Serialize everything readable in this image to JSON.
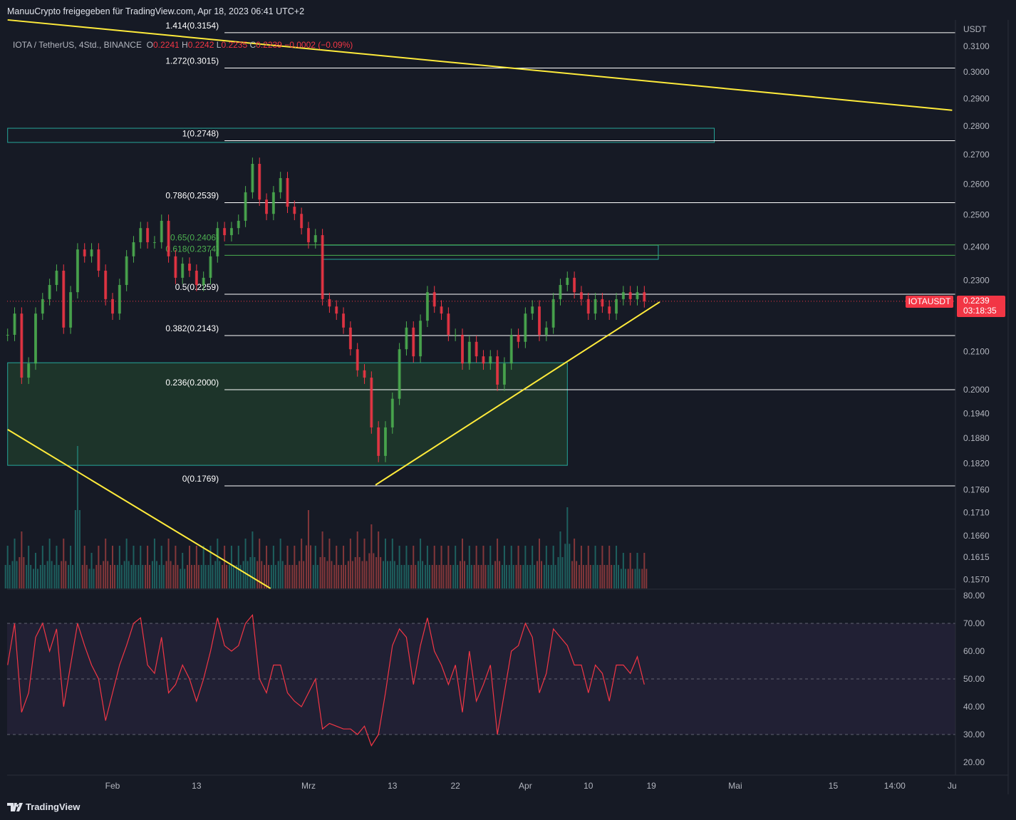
{
  "header": {
    "shared_by": "ManuuCrypto freigegeben für TradingView.com, Apr 18, 2023 06:41 UTC+2"
  },
  "legend": {
    "symbol": "IOTA / TetherUS, 4Std., BINANCE",
    "o_label": "O",
    "o": "0.2241",
    "h_label": "H",
    "h": "0.2242",
    "l_label": "L",
    "l": "0.2235",
    "c_label": "C",
    "c": "0.2239",
    "change": "−0.0002 (−0.09%)"
  },
  "price_label": {
    "symbol": "IOTAUSDT",
    "price": "0.2239",
    "countdown": "03:18:35",
    "color": "#f23645"
  },
  "footer": {
    "brand": "TradingView"
  },
  "chart_data": [
    {
      "type": "candlestick",
      "title": "",
      "ylabel": "USDT",
      "scale": "log",
      "ylim": [
        0.1545,
        0.3215
      ],
      "grid": false,
      "colors": {
        "up": "#4caf50",
        "down": "#f23645",
        "background": "#161a25"
      },
      "y_ticks": [
        "0.3100",
        "0.3000",
        "0.2900",
        "0.2800",
        "0.2700",
        "0.2600",
        "0.2500",
        "0.2400",
        "0.2300",
        "0.2100",
        "0.2000",
        "0.1940",
        "0.1880",
        "0.1820",
        "0.1760",
        "0.1710",
        "0.1660",
        "0.1615",
        "0.1570"
      ],
      "x_ticks": [
        {
          "label": "Feb",
          "date": "2023-02-01"
        },
        {
          "label": "13",
          "date": "2023-02-13"
        },
        {
          "label": "Mrz",
          "date": "2023-03-01"
        },
        {
          "label": "13",
          "date": "2023-03-13"
        },
        {
          "label": "22",
          "date": "2023-03-22"
        },
        {
          "label": "Apr",
          "date": "2023-04-01"
        },
        {
          "label": "10",
          "date": "2023-04-10"
        },
        {
          "label": "19",
          "date": "2023-04-19"
        },
        {
          "label": "Mai",
          "date": "2023-05-01"
        },
        {
          "label": "15",
          "date": "2023-05-15"
        },
        {
          "label": "14:00",
          "date": "2023-05-23T19:00"
        },
        {
          "label": "Ju",
          "date": "2023-06-01"
        }
      ],
      "dates": [
        "2023-01-17",
        "2023-01-18",
        "2023-01-19",
        "2023-01-20",
        "2023-01-21",
        "2023-01-22",
        "2023-01-23",
        "2023-01-24",
        "2023-01-25",
        "2023-01-26",
        "2023-01-27",
        "2023-01-28",
        "2023-01-29",
        "2023-01-30",
        "2023-01-31",
        "2023-02-01",
        "2023-02-02",
        "2023-02-03",
        "2023-02-04",
        "2023-02-05",
        "2023-02-06",
        "2023-02-07",
        "2023-02-08",
        "2023-02-09",
        "2023-02-10",
        "2023-02-11",
        "2023-02-12",
        "2023-02-13",
        "2023-02-14",
        "2023-02-15",
        "2023-02-16",
        "2023-02-17",
        "2023-02-18",
        "2023-02-19",
        "2023-02-20",
        "2023-02-21",
        "2023-02-22",
        "2023-02-23",
        "2023-02-24",
        "2023-02-25",
        "2023-02-26",
        "2023-02-27",
        "2023-02-28",
        "2023-03-01",
        "2023-03-02",
        "2023-03-03",
        "2023-03-04",
        "2023-03-05",
        "2023-03-06",
        "2023-03-07",
        "2023-03-08",
        "2023-03-09",
        "2023-03-10",
        "2023-03-11",
        "2023-03-12",
        "2023-03-13",
        "2023-03-14",
        "2023-03-15",
        "2023-03-16",
        "2023-03-17",
        "2023-03-18",
        "2023-03-19",
        "2023-03-20",
        "2023-03-21",
        "2023-03-22",
        "2023-03-23",
        "2023-03-24",
        "2023-03-25",
        "2023-03-26",
        "2023-03-27",
        "2023-03-28",
        "2023-03-29",
        "2023-03-30",
        "2023-03-31",
        "2023-04-01",
        "2023-04-02",
        "2023-04-03",
        "2023-04-04",
        "2023-04-05",
        "2023-04-06",
        "2023-04-07",
        "2023-04-08",
        "2023-04-09",
        "2023-04-10",
        "2023-04-11",
        "2023-04-12",
        "2023-04-13",
        "2023-04-14",
        "2023-04-15",
        "2023-04-16",
        "2023-04-17",
        "2023-04-18"
      ],
      "close": [
        0.2145,
        0.2204,
        0.2031,
        0.2068,
        0.2204,
        0.2245,
        0.2286,
        0.2328,
        0.2165,
        0.2265,
        0.2392,
        0.2371,
        0.2392,
        0.2328,
        0.2245,
        0.2204,
        0.2286,
        0.2371,
        0.2414,
        0.2458,
        0.2414,
        0.2414,
        0.2481,
        0.2371,
        0.2307,
        0.2349,
        0.2328,
        0.2286,
        0.2307,
        0.2371,
        0.2458,
        0.2436,
        0.2458,
        0.2481,
        0.2573,
        0.2668,
        0.2549,
        0.2503,
        0.2573,
        0.262,
        0.2526,
        0.2503,
        0.2458,
        0.2414,
        0.2436,
        0.2245,
        0.2224,
        0.2204,
        0.2165,
        0.2106,
        0.205,
        0.2031,
        0.1906,
        0.1838,
        0.1906,
        0.1977,
        0.2106,
        0.2165,
        0.2087,
        0.2184,
        0.2265,
        0.2224,
        0.2204,
        0.2145,
        0.2145,
        0.2068,
        0.2126,
        0.2087,
        0.2068,
        0.2087,
        0.2013,
        0.2068,
        0.2145,
        0.2126,
        0.2204,
        0.2224,
        0.2145,
        0.2165,
        0.2245,
        0.2286,
        0.2307,
        0.2265,
        0.2245,
        0.2204,
        0.2245,
        0.2224,
        0.2204,
        0.2245,
        0.2265,
        0.2245,
        0.2265,
        0.2239
      ],
      "volume_relative": [
        0.3,
        0.35,
        0.4,
        0.3,
        0.25,
        0.3,
        0.35,
        0.3,
        0.35,
        0.3,
        1.0,
        0.3,
        0.25,
        0.3,
        0.35,
        0.3,
        0.3,
        0.35,
        0.3,
        0.3,
        0.3,
        0.35,
        0.3,
        0.35,
        0.3,
        0.25,
        0.3,
        0.3,
        0.3,
        0.3,
        0.35,
        0.3,
        0.3,
        0.3,
        0.35,
        0.4,
        0.35,
        0.3,
        0.3,
        0.35,
        0.3,
        0.3,
        0.35,
        0.55,
        0.3,
        0.4,
        0.35,
        0.3,
        0.3,
        0.35,
        0.4,
        0.35,
        0.45,
        0.4,
        0.35,
        0.35,
        0.3,
        0.3,
        0.3,
        0.35,
        0.3,
        0.3,
        0.3,
        0.3,
        0.3,
        0.35,
        0.3,
        0.3,
        0.3,
        0.3,
        0.35,
        0.3,
        0.3,
        0.3,
        0.3,
        0.3,
        0.35,
        0.3,
        0.3,
        0.4,
        0.57,
        0.35,
        0.3,
        0.3,
        0.3,
        0.3,
        0.3,
        0.3,
        0.25,
        0.25,
        0.25,
        0.25
      ],
      "current_price": 0.2239,
      "fib_levels": [
        {
          "label": "1.414(0.3154)",
          "price": 0.3154,
          "color": "#ffffff"
        },
        {
          "label": "1.272(0.3015)",
          "price": 0.3015,
          "color": "#ffffff"
        },
        {
          "label": "1(0.2748)",
          "price": 0.2748,
          "color": "#ffffff"
        },
        {
          "label": "0.786(0.2539)",
          "price": 0.2539,
          "color": "#ffffff"
        },
        {
          "label": "0.65(0.2406)",
          "price": 0.2406,
          "color": "#4caf50"
        },
        {
          "label": "0.618(0.2374)",
          "price": 0.2374,
          "color": "#4caf50"
        },
        {
          "label": "0.5(0.2259)",
          "price": 0.2259,
          "color": "#ffffff"
        },
        {
          "label": "0.382(0.2143)",
          "price": 0.2143,
          "color": "#ffffff"
        },
        {
          "label": "0.236(0.2000)",
          "price": 0.2,
          "color": "#ffffff"
        },
        {
          "label": "0(0.1769)",
          "price": 0.1769,
          "color": "#ffffff"
        }
      ],
      "fib_start_date": "2023-02-17",
      "zones": [
        {
          "from": "2023-01-17",
          "to": "2023-04-28",
          "top": 0.2792,
          "bottom": 0.2742,
          "fill": "none",
          "stroke": "#26a69a"
        },
        {
          "from": "2023-03-03",
          "to": "2023-04-20",
          "top": 0.2405,
          "bottom": 0.2362,
          "fill": "none",
          "stroke": "#26a69a"
        },
        {
          "from": "2023-01-17",
          "to": "2023-04-07",
          "top": 0.207,
          "bottom": 0.1816,
          "fill": "#1e3a2c",
          "stroke": "#26a69a"
        }
      ],
      "trendlines": [
        {
          "from": {
            "date": "2023-01-17",
            "price": 0.3206
          },
          "to": {
            "date": "2023-06-01",
            "price": 0.2857
          },
          "color": "#ffeb3b"
        },
        {
          "from": {
            "date": "2023-01-17",
            "price": 0.1901
          },
          "to": {
            "date": "2023-02-23T14:00",
            "price": 0.1552
          },
          "color": "#ffeb3b"
        },
        {
          "from": {
            "date": "2023-03-10T14:00",
            "price": 0.1771
          },
          "to": {
            "date": "2023-04-20T05:00",
            "price": 0.2237
          },
          "color": "#ffeb3b"
        }
      ]
    },
    {
      "type": "line",
      "title": "",
      "ylim": [
        17,
        83
      ],
      "y_ticks": [
        "80.00",
        "70.00",
        "60.00",
        "50.00",
        "40.00",
        "30.00",
        "20.00"
      ],
      "band": [
        30,
        70
      ],
      "dashed_levels": [
        70,
        50,
        30
      ],
      "color": "#f23645",
      "band_color": "#2a2440",
      "values": [
        55,
        70,
        38,
        45,
        65,
        70,
        60,
        68,
        40,
        55,
        70,
        62,
        55,
        50,
        35,
        45,
        55,
        62,
        70,
        72,
        55,
        52,
        65,
        45,
        48,
        55,
        50,
        42,
        50,
        60,
        72,
        62,
        60,
        62,
        70,
        73,
        50,
        45,
        55,
        55,
        45,
        42,
        40,
        45,
        50,
        32,
        34,
        33,
        32,
        32,
        30,
        33,
        26,
        30,
        45,
        62,
        68,
        65,
        48,
        62,
        72,
        60,
        55,
        48,
        55,
        38,
        60,
        42,
        48,
        55,
        30,
        45,
        60,
        62,
        70,
        65,
        45,
        52,
        68,
        65,
        62,
        55,
        55,
        45,
        55,
        52,
        42,
        55,
        55,
        52,
        58,
        48
      ]
    }
  ]
}
